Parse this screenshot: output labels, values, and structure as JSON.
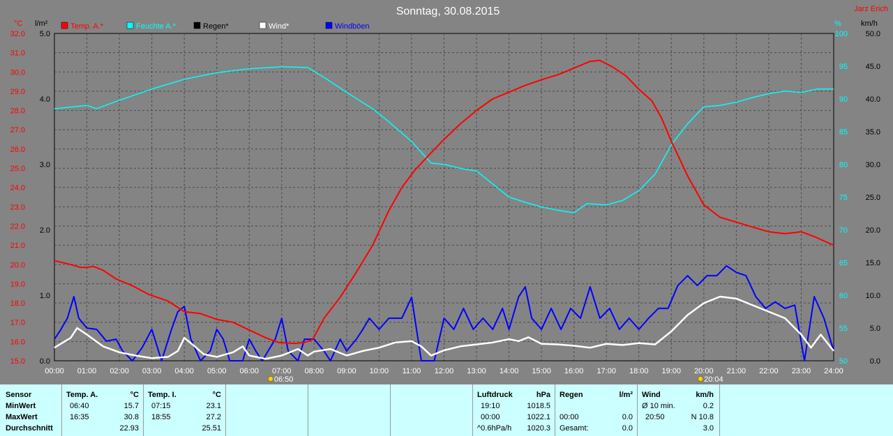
{
  "title": "Sonntag, 30.08.2015",
  "author": "Jarz Erich",
  "axis_units": {
    "temp": "°C",
    "rain": "l/m²",
    "humidity": "%",
    "wind": "km/h"
  },
  "legend": [
    {
      "label": "Temp. A.*",
      "color": "#ff0000"
    },
    {
      "label": "Feuchte A.*",
      "color": "#00ffff"
    },
    {
      "label": "Regen*",
      "color": "#000000"
    },
    {
      "label": "Wind*",
      "color": "#ffffff"
    },
    {
      "label": "Windböen",
      "color": "#0000ff"
    }
  ],
  "sun_markers": [
    {
      "label": "06:50",
      "hour": 6.83
    },
    {
      "label": "20:04",
      "hour": 20.07
    }
  ],
  "chart_data": {
    "type": "line",
    "x_ticks": [
      "00:00",
      "01:00",
      "02:00",
      "03:00",
      "04:00",
      "05:00",
      "06:00",
      "07:00",
      "08:00",
      "09:00",
      "10:00",
      "11:00",
      "12:00",
      "13:00",
      "14:00",
      "15:00",
      "16:00",
      "17:00",
      "18:00",
      "19:00",
      "20:00",
      "21:00",
      "22:00",
      "23:00",
      "24:00"
    ],
    "xlim": [
      0,
      24
    ],
    "temp_ylim": [
      15,
      32
    ],
    "temp_ticks": [
      "15.0",
      "16.0",
      "17.0",
      "18.0",
      "19.0",
      "20.0",
      "21.0",
      "22.0",
      "23.0",
      "24.0",
      "25.0",
      "26.0",
      "27.0",
      "28.0",
      "29.0",
      "30.0",
      "31.0",
      "32.0"
    ],
    "rain_ylim": [
      0,
      5
    ],
    "rain_ticks": [
      "0.0",
      "1.0",
      "2.0",
      "3.0",
      "4.0",
      "5.0"
    ],
    "hum_ylim": [
      50,
      100
    ],
    "hum_ticks": [
      "50",
      "55",
      "60",
      "65",
      "70",
      "75",
      "80",
      "85",
      "90",
      "95",
      "100"
    ],
    "wind_ylim": [
      0,
      50
    ],
    "wind_ticks": [
      "0.0",
      "5.0",
      "10.0",
      "15.0",
      "20.0",
      "25.0",
      "30.0",
      "35.0",
      "40.0",
      "45.0",
      "50.0"
    ],
    "grid": true,
    "series": [
      {
        "name": "Temp. A.*",
        "color": "#ff0000",
        "axis": "temp",
        "points": [
          [
            0,
            20.2
          ],
          [
            0.5,
            20.0
          ],
          [
            0.8,
            19.85
          ],
          [
            1.0,
            19.85
          ],
          [
            1.2,
            19.9
          ],
          [
            1.5,
            19.7
          ],
          [
            1.9,
            19.25
          ],
          [
            2.4,
            18.9
          ],
          [
            2.9,
            18.45
          ],
          [
            3.5,
            18.1
          ],
          [
            4.0,
            17.55
          ],
          [
            4.5,
            17.45
          ],
          [
            5.0,
            17.15
          ],
          [
            5.5,
            17.0
          ],
          [
            6.0,
            16.6
          ],
          [
            6.5,
            16.2
          ],
          [
            6.9,
            15.95
          ],
          [
            7.4,
            15.9
          ],
          [
            7.7,
            15.95
          ],
          [
            7.95,
            16.1
          ],
          [
            8.3,
            17.2
          ],
          [
            8.8,
            18.3
          ],
          [
            9.3,
            19.6
          ],
          [
            9.8,
            21.0
          ],
          [
            10.3,
            22.8
          ],
          [
            10.7,
            24.0
          ],
          [
            11.1,
            24.9
          ],
          [
            11.6,
            25.8
          ],
          [
            12.0,
            26.5
          ],
          [
            12.5,
            27.3
          ],
          [
            13.0,
            28.0
          ],
          [
            13.5,
            28.6
          ],
          [
            14.0,
            28.95
          ],
          [
            14.5,
            29.3
          ],
          [
            15.0,
            29.6
          ],
          [
            15.5,
            29.85
          ],
          [
            16.0,
            30.2
          ],
          [
            16.5,
            30.55
          ],
          [
            16.8,
            30.6
          ],
          [
            17.2,
            30.25
          ],
          [
            17.6,
            29.8
          ],
          [
            18.0,
            29.1
          ],
          [
            18.4,
            28.5
          ],
          [
            18.7,
            27.6
          ],
          [
            19.0,
            26.4
          ],
          [
            19.5,
            24.6
          ],
          [
            20.0,
            23.1
          ],
          [
            20.5,
            22.45
          ],
          [
            21.0,
            22.2
          ],
          [
            21.5,
            21.95
          ],
          [
            22.0,
            21.7
          ],
          [
            22.5,
            21.6
          ],
          [
            23.0,
            21.7
          ],
          [
            23.4,
            21.45
          ],
          [
            23.8,
            21.15
          ],
          [
            24,
            21.0
          ]
        ]
      },
      {
        "name": "Feuchte A.*",
        "color": "#00ffff",
        "axis": "hum",
        "points": [
          [
            0,
            88.5
          ],
          [
            1.0,
            89.0
          ],
          [
            1.3,
            88.5
          ],
          [
            2.0,
            89.8
          ],
          [
            3.0,
            91.5
          ],
          [
            4.0,
            93.0
          ],
          [
            5.0,
            94.0
          ],
          [
            6.0,
            94.6
          ],
          [
            7.0,
            94.9
          ],
          [
            7.8,
            94.8
          ],
          [
            8.3,
            93.3
          ],
          [
            9.0,
            91.0
          ],
          [
            9.8,
            88.5
          ],
          [
            10.3,
            86.5
          ],
          [
            11.0,
            83.5
          ],
          [
            11.6,
            80.2
          ],
          [
            12.0,
            80.0
          ],
          [
            12.6,
            79.3
          ],
          [
            13.0,
            79.0
          ],
          [
            13.5,
            77.0
          ],
          [
            14.0,
            75.0
          ],
          [
            14.5,
            74.2
          ],
          [
            15.0,
            73.5
          ],
          [
            15.5,
            73.0
          ],
          [
            16.0,
            72.6
          ],
          [
            16.4,
            74.0
          ],
          [
            17.0,
            73.8
          ],
          [
            17.5,
            74.5
          ],
          [
            18.0,
            76.0
          ],
          [
            18.5,
            78.5
          ],
          [
            19.0,
            83.0
          ],
          [
            19.5,
            86.2
          ],
          [
            20.0,
            88.8
          ],
          [
            20.5,
            89.0
          ],
          [
            21.0,
            89.5
          ],
          [
            21.5,
            90.2
          ],
          [
            22.0,
            90.8
          ],
          [
            22.5,
            91.2
          ],
          [
            23.0,
            91.0
          ],
          [
            23.5,
            91.5
          ],
          [
            24,
            91.5
          ]
        ]
      },
      {
        "name": "Regen*",
        "color": "#000000",
        "axis": "rain",
        "points": [
          [
            0,
            0
          ],
          [
            24,
            0
          ]
        ]
      },
      {
        "name": "Wind*",
        "color": "#ffffff",
        "axis": "wind",
        "points": [
          [
            0,
            2.0
          ],
          [
            0.5,
            3.5
          ],
          [
            0.7,
            5.0
          ],
          [
            1.0,
            4.0
          ],
          [
            1.5,
            2.2
          ],
          [
            2.0,
            1.3
          ],
          [
            2.5,
            0.8
          ],
          [
            3.0,
            0.4
          ],
          [
            3.5,
            0.6
          ],
          [
            3.8,
            1.5
          ],
          [
            4.0,
            3.5
          ],
          [
            4.3,
            2.3
          ],
          [
            4.6,
            1.0
          ],
          [
            5.0,
            0.6
          ],
          [
            5.5,
            1.3
          ],
          [
            5.8,
            2.2
          ],
          [
            6.0,
            0.8
          ],
          [
            6.5,
            0.3
          ],
          [
            7.0,
            0.8
          ],
          [
            7.5,
            1.8
          ],
          [
            7.8,
            0.8
          ],
          [
            8.0,
            1.4
          ],
          [
            8.5,
            1.8
          ],
          [
            9.0,
            0.8
          ],
          [
            9.5,
            1.5
          ],
          [
            10.0,
            2.0
          ],
          [
            10.5,
            2.8
          ],
          [
            11.0,
            3.0
          ],
          [
            11.3,
            2.2
          ],
          [
            11.6,
            0.8
          ],
          [
            12.0,
            1.6
          ],
          [
            12.5,
            2.2
          ],
          [
            13.0,
            2.5
          ],
          [
            13.5,
            2.8
          ],
          [
            14.0,
            3.3
          ],
          [
            14.3,
            3.0
          ],
          [
            14.6,
            3.6
          ],
          [
            15.0,
            2.6
          ],
          [
            15.5,
            2.5
          ],
          [
            16.0,
            2.3
          ],
          [
            16.5,
            2.0
          ],
          [
            17.0,
            2.6
          ],
          [
            17.5,
            2.4
          ],
          [
            18.0,
            2.7
          ],
          [
            18.5,
            2.5
          ],
          [
            19.0,
            4.5
          ],
          [
            19.5,
            7.0
          ],
          [
            20.0,
            8.8
          ],
          [
            20.5,
            9.8
          ],
          [
            21.0,
            9.5
          ],
          [
            21.5,
            8.5
          ],
          [
            22.0,
            7.5
          ],
          [
            22.5,
            6.5
          ],
          [
            23.0,
            4.0
          ],
          [
            23.3,
            2.0
          ],
          [
            23.6,
            4.0
          ],
          [
            24,
            1.5
          ]
        ]
      },
      {
        "name": "Windböen",
        "color": "#0000ff",
        "axis": "wind",
        "points": [
          [
            0,
            3.3
          ],
          [
            0.2,
            4.8
          ],
          [
            0.4,
            6.5
          ],
          [
            0.6,
            9.8
          ],
          [
            0.75,
            6.5
          ],
          [
            1.0,
            5.0
          ],
          [
            1.3,
            4.8
          ],
          [
            1.6,
            3.0
          ],
          [
            1.9,
            3.3
          ],
          [
            2.1,
            1.5
          ],
          [
            2.4,
            0
          ],
          [
            2.7,
            2.0
          ],
          [
            3.0,
            4.8
          ],
          [
            3.3,
            0
          ],
          [
            3.6,
            4.7
          ],
          [
            3.8,
            7.5
          ],
          [
            4.0,
            8.3
          ],
          [
            4.2,
            3.3
          ],
          [
            4.5,
            0
          ],
          [
            4.8,
            1.5
          ],
          [
            5.0,
            4.8
          ],
          [
            5.2,
            3.3
          ],
          [
            5.4,
            0
          ],
          [
            5.8,
            0
          ],
          [
            6.0,
            3.3
          ],
          [
            6.2,
            1.5
          ],
          [
            6.4,
            0
          ],
          [
            6.8,
            3.3
          ],
          [
            7.0,
            6.5
          ],
          [
            7.2,
            1.5
          ],
          [
            7.5,
            0
          ],
          [
            7.7,
            3.3
          ],
          [
            8.0,
            3.3
          ],
          [
            8.3,
            1.5
          ],
          [
            8.5,
            0
          ],
          [
            8.8,
            3.3
          ],
          [
            9.0,
            1.5
          ],
          [
            9.3,
            3.3
          ],
          [
            9.5,
            4.8
          ],
          [
            9.7,
            6.5
          ],
          [
            10.0,
            4.8
          ],
          [
            10.3,
            6.5
          ],
          [
            10.7,
            6.5
          ],
          [
            11.0,
            9.7
          ],
          [
            11.3,
            0
          ],
          [
            11.7,
            0
          ],
          [
            12.0,
            6.5
          ],
          [
            12.3,
            4.8
          ],
          [
            12.6,
            8.0
          ],
          [
            12.9,
            4.8
          ],
          [
            13.2,
            6.5
          ],
          [
            13.5,
            4.8
          ],
          [
            13.8,
            8.0
          ],
          [
            14.0,
            4.8
          ],
          [
            14.3,
            9.8
          ],
          [
            14.5,
            11.3
          ],
          [
            14.7,
            6.5
          ],
          [
            15.0,
            4.8
          ],
          [
            15.3,
            8.0
          ],
          [
            15.6,
            4.8
          ],
          [
            15.9,
            8.0
          ],
          [
            16.2,
            6.5
          ],
          [
            16.5,
            11.3
          ],
          [
            16.8,
            6.5
          ],
          [
            17.1,
            8.0
          ],
          [
            17.4,
            4.8
          ],
          [
            17.7,
            6.5
          ],
          [
            18.0,
            4.8
          ],
          [
            18.3,
            6.5
          ],
          [
            18.6,
            8.0
          ],
          [
            18.9,
            8.0
          ],
          [
            19.2,
            11.5
          ],
          [
            19.5,
            13.0
          ],
          [
            19.8,
            11.5
          ],
          [
            20.1,
            13.0
          ],
          [
            20.4,
            13.0
          ],
          [
            20.7,
            14.5
          ],
          [
            21.0,
            13.5
          ],
          [
            21.3,
            13.0
          ],
          [
            21.6,
            9.8
          ],
          [
            21.9,
            8.0
          ],
          [
            22.2,
            9.0
          ],
          [
            22.5,
            8.0
          ],
          [
            22.8,
            8.5
          ],
          [
            23.1,
            0
          ],
          [
            23.4,
            9.8
          ],
          [
            23.7,
            6.5
          ],
          [
            24,
            1.5
          ]
        ]
      }
    ]
  },
  "table": {
    "sensor_header": "Sensor",
    "row_labels": [
      "MinWert",
      "MaxWert",
      "Durchschnitt"
    ],
    "temp_a": {
      "header": "Temp. A.",
      "unit": "°C",
      "rows": [
        [
          "06:40",
          "15.7"
        ],
        [
          "16:35",
          "30.8"
        ],
        [
          "",
          "22.93"
        ]
      ]
    },
    "temp_i": {
      "header": "Temp. I.",
      "unit": "°C",
      "rows": [
        [
          "07:15",
          "23.1"
        ],
        [
          "18:55",
          "27.2"
        ],
        [
          "",
          "25.51"
        ]
      ]
    },
    "pressure": {
      "header": "Luftdruck",
      "unit": "hPa",
      "rows": [
        [
          "19:10",
          "1018.5"
        ],
        [
          "00:00",
          "1022.1"
        ],
        [
          "^0.6hPa/h",
          "1020.3"
        ]
      ]
    },
    "rain": {
      "header": "Regen",
      "unit": "l/m²",
      "rows": [
        [
          "",
          ""
        ],
        [
          "00:00",
          "0.0"
        ],
        [
          "Gesamt:",
          "0.0"
        ]
      ]
    },
    "wind": {
      "header": "Wind",
      "unit": "km/h",
      "rows": [
        [
          "Ø 10 min.",
          "0.2"
        ],
        [
          "20:50",
          "N 10.8"
        ],
        [
          "",
          "3.0"
        ]
      ]
    }
  }
}
